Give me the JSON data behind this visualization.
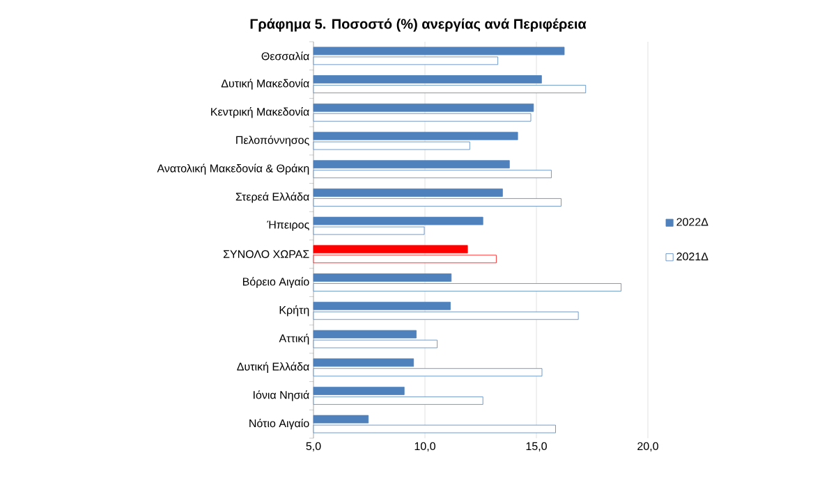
{
  "chart_data": {
    "type": "bar",
    "orientation": "horizontal",
    "title": "Γράφημα 5. Ποσοστό (%) ανεργίας ανά Περιφέρεια",
    "categories": [
      "Θεσσαλία",
      "Δυτική Μακεδονία",
      "Κεντρική Μακεδονία",
      "Πελοπόννησος",
      "Ανατολική Μακεδονία & Θράκη",
      "Στερεά Ελλάδα",
      "Ήπειρος",
      "ΣΥΝΟΛΟ ΧΩΡΑΣ",
      "Βόρειο Αιγαίο",
      "Κρήτη",
      "Αττική",
      "Δυτική Ελλάδα",
      "Ιόνια Νησιά",
      "Νότιο Αιγαίο"
    ],
    "series": [
      {
        "name": "2022Δ",
        "color": "#4f81bd",
        "colors": [
          "#4f81bd",
          "#4f81bd",
          "#4f81bd",
          "#4f81bd",
          "#4f81bd",
          "#4f81bd",
          "#4f81bd",
          "#ff0000",
          "#4f81bd",
          "#4f81bd",
          "#4f81bd",
          "#4f81bd",
          "#4f81bd",
          "#4f81bd"
        ],
        "values": [
          16.25,
          15.23,
          14.87,
          14.16,
          13.79,
          13.48,
          12.6,
          11.91,
          11.18,
          11.14,
          9.61,
          9.49,
          9.07,
          7.46
        ]
      },
      {
        "name": "2021Δ",
        "color": "#4f81bd",
        "colors": [
          "#4f81bd",
          "#4f81bd",
          "#4f81bd",
          "#4f81bd",
          "#4f81bd",
          "#4f81bd",
          "#4f81bd",
          "#ff0000",
          "#4f81bd",
          "#4f81bd",
          "#4f81bd",
          "#4f81bd",
          "#4f81bd",
          "#4f81bd"
        ],
        "values": [
          13.27,
          17.21,
          14.75,
          12.01,
          15.67,
          16.11,
          9.97,
          13.2,
          18.8,
          16.88,
          10.55,
          15.25,
          12.6,
          15.86
        ]
      }
    ],
    "xlim": [
      5,
      20
    ],
    "xticks": [
      {
        "value": 5,
        "label": "5,0"
      },
      {
        "value": 10,
        "label": "10,0"
      },
      {
        "value": 15,
        "label": "15,0"
      },
      {
        "value": 20,
        "label": "20,0"
      }
    ],
    "grid": "x",
    "legend": "right"
  }
}
